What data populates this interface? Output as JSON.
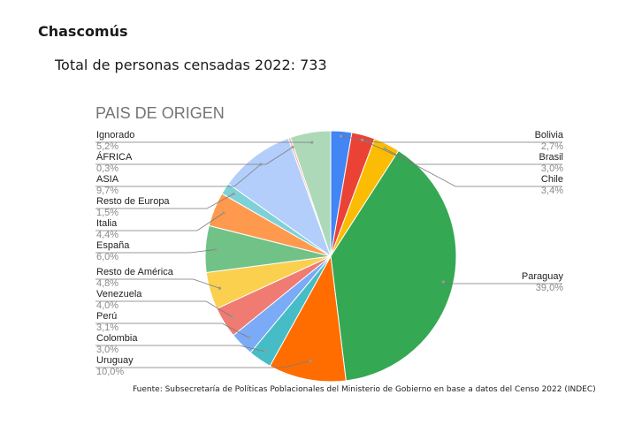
{
  "header": {
    "city": "Chascomús",
    "total_line": "Total de personas censadas 2022: 733"
  },
  "footer": {
    "source": "Fuente: Subsecretaría de Políticas Poblacionales del Ministerio de Gobierno en base a datos del Censo 2022 (INDEC)"
  },
  "chart_data": {
    "type": "pie",
    "title": "PAIS DE ORIGEN",
    "legend_placement": "labels on both sides with leader lines",
    "slices": [
      {
        "label": "Bolivia",
        "value_label": "2,7%",
        "value": 2.7,
        "color": "#4285f4"
      },
      {
        "label": "Brasil",
        "value_label": "3,0%",
        "value": 3.0,
        "color": "#ea4335"
      },
      {
        "label": "Chile",
        "value_label": "3,4%",
        "value": 3.4,
        "color": "#fbbc04"
      },
      {
        "label": "Paraguay",
        "value_label": "39,0%",
        "value": 39.0,
        "color": "#34a853"
      },
      {
        "label": "Uruguay",
        "value_label": "10,0%",
        "value": 10.0,
        "color": "#ff6d01"
      },
      {
        "label": "Colombia",
        "value_label": "3,0%",
        "value": 3.0,
        "color": "#46bdc6"
      },
      {
        "label": "Perú",
        "value_label": "3,1%",
        "value": 3.1,
        "color": "#7baaf7"
      },
      {
        "label": "Venezuela",
        "value_label": "4,0%",
        "value": 4.0,
        "color": "#f07b72"
      },
      {
        "label": "Resto de América",
        "value_label": "4,8%",
        "value": 4.8,
        "color": "#fcd04f"
      },
      {
        "label": "España",
        "value_label": "6,0%",
        "value": 6.0,
        "color": "#71c287"
      },
      {
        "label": "Italia",
        "value_label": "4,4%",
        "value": 4.4,
        "color": "#ff994d"
      },
      {
        "label": "Resto de Europa",
        "value_label": "1,5%",
        "value": 1.5,
        "color": "#7ed1d7"
      },
      {
        "label": "ASIA",
        "value_label": "9,7%",
        "value": 9.7,
        "color": "#b3cefb"
      },
      {
        "label": "ÁFRICA",
        "value_label": "0,3%",
        "value": 0.3,
        "color": "#f7b4ae"
      },
      {
        "label": "Ignorado",
        "value_label": "5,2%",
        "value": 5.2,
        "color": "#add9b9"
      }
    ]
  }
}
